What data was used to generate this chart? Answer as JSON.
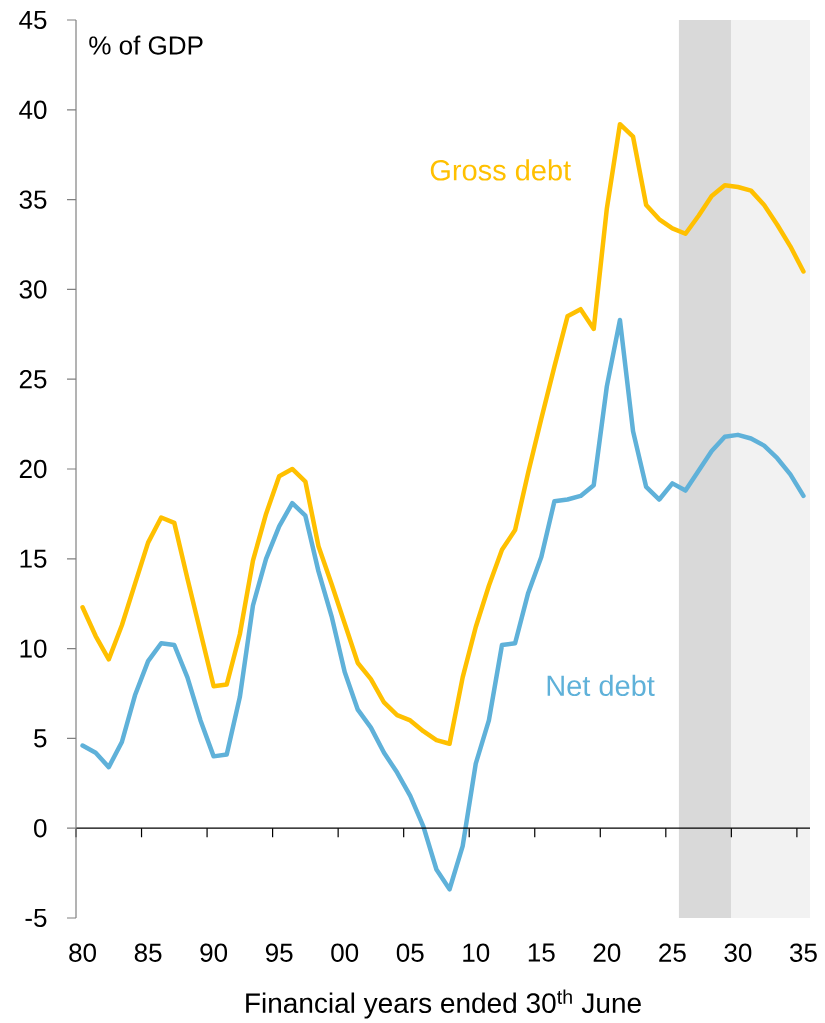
{
  "chart_data": {
    "type": "line",
    "ylabel": "% of GDP",
    "xlabel": "Financial years ended 30$^{th}$ June",
    "x": [
      1980,
      1981,
      1982,
      1983,
      1984,
      1985,
      1986,
      1987,
      1988,
      1989,
      1990,
      1991,
      1992,
      1993,
      1994,
      1995,
      1996,
      1997,
      1998,
      1999,
      2000,
      2001,
      2002,
      2003,
      2004,
      2005,
      2006,
      2007,
      2008,
      2009,
      2010,
      2011,
      2012,
      2013,
      2014,
      2015,
      2016,
      2017,
      2018,
      2019,
      2020,
      2021,
      2022,
      2023,
      2024,
      2025,
      2026,
      2027,
      2028,
      2029,
      2030,
      2031,
      2032,
      2033,
      2034,
      2035
    ],
    "series": [
      {
        "name": "Gross debt",
        "color": "#ffc000",
        "values": [
          12.3,
          10.7,
          9.4,
          11.3,
          13.6,
          15.9,
          17.3,
          17.0,
          13.9,
          10.9,
          7.9,
          8.0,
          10.8,
          14.9,
          17.5,
          19.6,
          20.0,
          19.3,
          15.7,
          13.6,
          11.4,
          9.2,
          8.3,
          7.0,
          6.3,
          6.0,
          5.4,
          4.9,
          4.7,
          8.4,
          11.2,
          13.5,
          15.5,
          16.6,
          19.8,
          22.8,
          25.7,
          28.5,
          28.9,
          27.8,
          34.5,
          39.2,
          38.5,
          34.7,
          33.9,
          33.4,
          33.1,
          34.1,
          35.2,
          35.8,
          35.7,
          35.5,
          34.7,
          33.6,
          32.4,
          31.0
        ]
      },
      {
        "name": "Net debt",
        "color": "#5fb1d9",
        "values": [
          4.6,
          4.2,
          3.4,
          4.8,
          7.4,
          9.3,
          10.3,
          10.2,
          8.4,
          6.0,
          4.0,
          4.1,
          7.3,
          12.4,
          15.0,
          16.8,
          18.1,
          17.4,
          14.3,
          11.8,
          8.7,
          6.6,
          5.6,
          4.2,
          3.1,
          1.8,
          0.1,
          -2.3,
          -3.4,
          -1.0,
          3.6,
          6.0,
          10.2,
          10.3,
          13.1,
          15.1,
          18.2,
          18.3,
          18.5,
          19.1,
          24.6,
          28.3,
          22.1,
          19.0,
          18.3,
          19.2,
          18.8,
          19.9,
          21.0,
          21.8,
          21.9,
          21.7,
          21.3,
          20.6,
          19.7,
          18.5
        ]
      }
    ],
    "xlim": [
      1979.5,
      2035.5
    ],
    "xticks": [
      {
        "value": 1979.5,
        "label": null
      },
      {
        "value": 1984.5,
        "label": null
      },
      {
        "value": 1989.5,
        "label": null
      },
      {
        "value": 1994.5,
        "label": null
      },
      {
        "value": 1999.5,
        "label": null
      },
      {
        "value": 2004.5,
        "label": null
      },
      {
        "value": 2009.5,
        "label": null
      },
      {
        "value": 2014.5,
        "label": null
      },
      {
        "value": 2019.5,
        "label": null
      },
      {
        "value": 2024.5,
        "label": null
      },
      {
        "value": 2029.5,
        "label": null
      },
      {
        "value": 2034.5,
        "label": null
      },
      {
        "value": 1980,
        "label": "80"
      },
      {
        "value": 1985,
        "label": "85"
      },
      {
        "value": 1990,
        "label": "90"
      },
      {
        "value": 1995,
        "label": "95"
      },
      {
        "value": 2000,
        "label": "00"
      },
      {
        "value": 2005,
        "label": "05"
      },
      {
        "value": 2010,
        "label": "10"
      },
      {
        "value": 2015,
        "label": "15"
      },
      {
        "value": 2020,
        "label": "20"
      },
      {
        "value": 2025,
        "label": "25"
      },
      {
        "value": 2030,
        "label": "30"
      },
      {
        "value": 2035,
        "label": "35"
      }
    ],
    "ylim": [
      -5,
      45
    ],
    "yticks": [
      -5,
      0,
      5,
      10,
      15,
      20,
      25,
      30,
      35,
      40,
      45
    ],
    "bands": [
      {
        "axis": "x",
        "from": 2025.5,
        "to": 2029.5,
        "color": "#d9d9d9"
      },
      {
        "axis": "x",
        "from": 2029.5,
        "to": 2035.5,
        "color": "#f2f2f2"
      }
    ],
    "marker": "none",
    "line_style": "solid"
  }
}
